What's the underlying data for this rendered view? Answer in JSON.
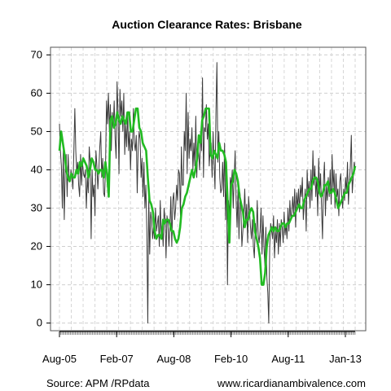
{
  "chart_data": {
    "type": "line",
    "title": "Auction Clearance Rates: Brisbane",
    "xlabel": "",
    "ylabel": "",
    "x_tick_labels": [
      "Aug-05",
      "Feb-07",
      "Aug-08",
      "Feb-10",
      "Aug-11",
      "Jan-13"
    ],
    "y_ticks": [
      0,
      10,
      20,
      30,
      40,
      50,
      60,
      70
    ],
    "ylim": [
      -2,
      72
    ],
    "grid": true,
    "footer_left": "Source: APM /RPdata",
    "footer_right": "www.ricardianambivalence.com",
    "series": [
      {
        "kind": "weekly",
        "color": "#3a3a3a",
        "values": [
          52,
          45,
          41,
          30,
          45,
          27,
          40,
          44,
          33,
          44,
          38,
          37,
          40,
          38,
          35,
          45,
          56,
          45,
          39,
          42,
          36,
          33,
          44,
          36,
          42,
          39,
          38,
          40,
          30,
          38,
          34,
          46,
          42,
          22,
          40,
          33,
          36,
          28,
          45,
          41,
          35,
          40,
          46,
          50,
          38,
          43,
          34,
          33,
          41,
          58,
          52,
          60,
          50,
          57,
          45,
          55,
          51,
          58,
          48,
          43,
          63,
          55,
          39,
          61,
          54,
          58,
          50,
          60,
          44,
          52,
          46,
          55,
          45,
          50,
          40,
          48,
          45,
          56,
          47,
          45,
          49,
          34,
          46,
          50,
          48,
          38,
          43,
          33,
          42,
          30,
          36,
          24,
          0,
          33,
          18,
          29,
          27,
          22,
          25,
          22,
          30,
          24,
          26,
          28,
          20,
          32,
          22,
          26,
          20,
          30,
          27,
          17,
          28,
          26,
          20,
          25,
          33,
          20,
          32,
          34,
          27,
          30,
          36,
          32,
          40,
          39,
          28,
          46,
          36,
          36,
          50,
          45,
          60,
          39,
          55,
          43,
          48,
          45,
          51,
          40,
          47,
          41,
          54,
          38,
          46,
          44,
          40,
          50,
          45,
          64,
          38,
          51,
          50,
          57,
          48,
          52,
          41,
          46,
          47,
          38,
          50,
          42,
          35,
          55,
          68,
          42,
          50,
          38,
          34,
          35,
          42,
          33,
          47,
          27,
          39,
          10,
          32,
          28,
          38,
          36,
          40,
          30,
          38,
          45,
          32,
          25,
          35,
          22,
          34,
          30,
          20,
          24,
          28,
          35,
          26,
          31,
          21,
          33,
          29,
          25,
          22,
          27,
          20,
          17,
          26,
          22,
          32,
          23,
          21,
          24,
          30,
          18,
          28,
          20,
          15,
          25,
          12,
          8,
          0,
          20,
          26,
          24,
          22,
          28,
          17,
          24,
          21,
          27,
          18,
          26,
          20,
          27,
          25,
          21,
          29,
          23,
          26,
          22,
          30,
          24,
          32,
          27,
          29,
          33,
          28,
          35,
          25,
          34,
          30,
          35,
          29,
          36,
          33,
          38,
          27,
          31,
          35,
          24,
          40,
          33,
          37,
          30,
          40,
          32,
          45,
          36,
          41,
          33,
          38,
          28,
          43,
          34,
          39,
          30,
          22,
          37,
          42,
          28,
          36,
          32,
          38,
          33,
          40,
          31,
          44,
          35,
          40,
          30,
          39,
          33,
          35,
          28,
          37,
          39,
          33,
          30,
          35,
          32,
          38,
          34,
          42,
          31,
          37,
          41,
          49,
          34,
          38,
          42,
          40
        ]
      },
      {
        "kind": "smoothed",
        "color": "#22bb22",
        "values": [
          45,
          50,
          47,
          44,
          40,
          38,
          37,
          39,
          38,
          38,
          40,
          39,
          42,
          41,
          43,
          42,
          41,
          38,
          40,
          43,
          42,
          40,
          40,
          39,
          40,
          40,
          38,
          42,
          39,
          33,
          53,
          54,
          51,
          52,
          55,
          53,
          52,
          54,
          53,
          52,
          55,
          55,
          50,
          50,
          53,
          56,
          56,
          51,
          50,
          47,
          46,
          45,
          38,
          32,
          31,
          29,
          24,
          22,
          23,
          23,
          22,
          27,
          26,
          27,
          27,
          26,
          24,
          24,
          22,
          21,
          22,
          25,
          30,
          31,
          33,
          34,
          36,
          38,
          40,
          38,
          40,
          43,
          49,
          47,
          53,
          54,
          56,
          56,
          56,
          44,
          43,
          45,
          44,
          43,
          47,
          45,
          45,
          44,
          42,
          31,
          21,
          36,
          37,
          40,
          39,
          37,
          33,
          31,
          29,
          25,
          27,
          27,
          29,
          30,
          29,
          24,
          22,
          20,
          17,
          10,
          10,
          13,
          20,
          23,
          24,
          25,
          24,
          25,
          24,
          24,
          25,
          26,
          26,
          25,
          26,
          26,
          27,
          28,
          28,
          29,
          30,
          31,
          30,
          30,
          32,
          33,
          34,
          35,
          35,
          37,
          38,
          38,
          37,
          34,
          33,
          34,
          36,
          36,
          37,
          34,
          34,
          35,
          34,
          32,
          30,
          31,
          32,
          33,
          34,
          34,
          36,
          37,
          38,
          39,
          41
        ]
      }
    ]
  }
}
